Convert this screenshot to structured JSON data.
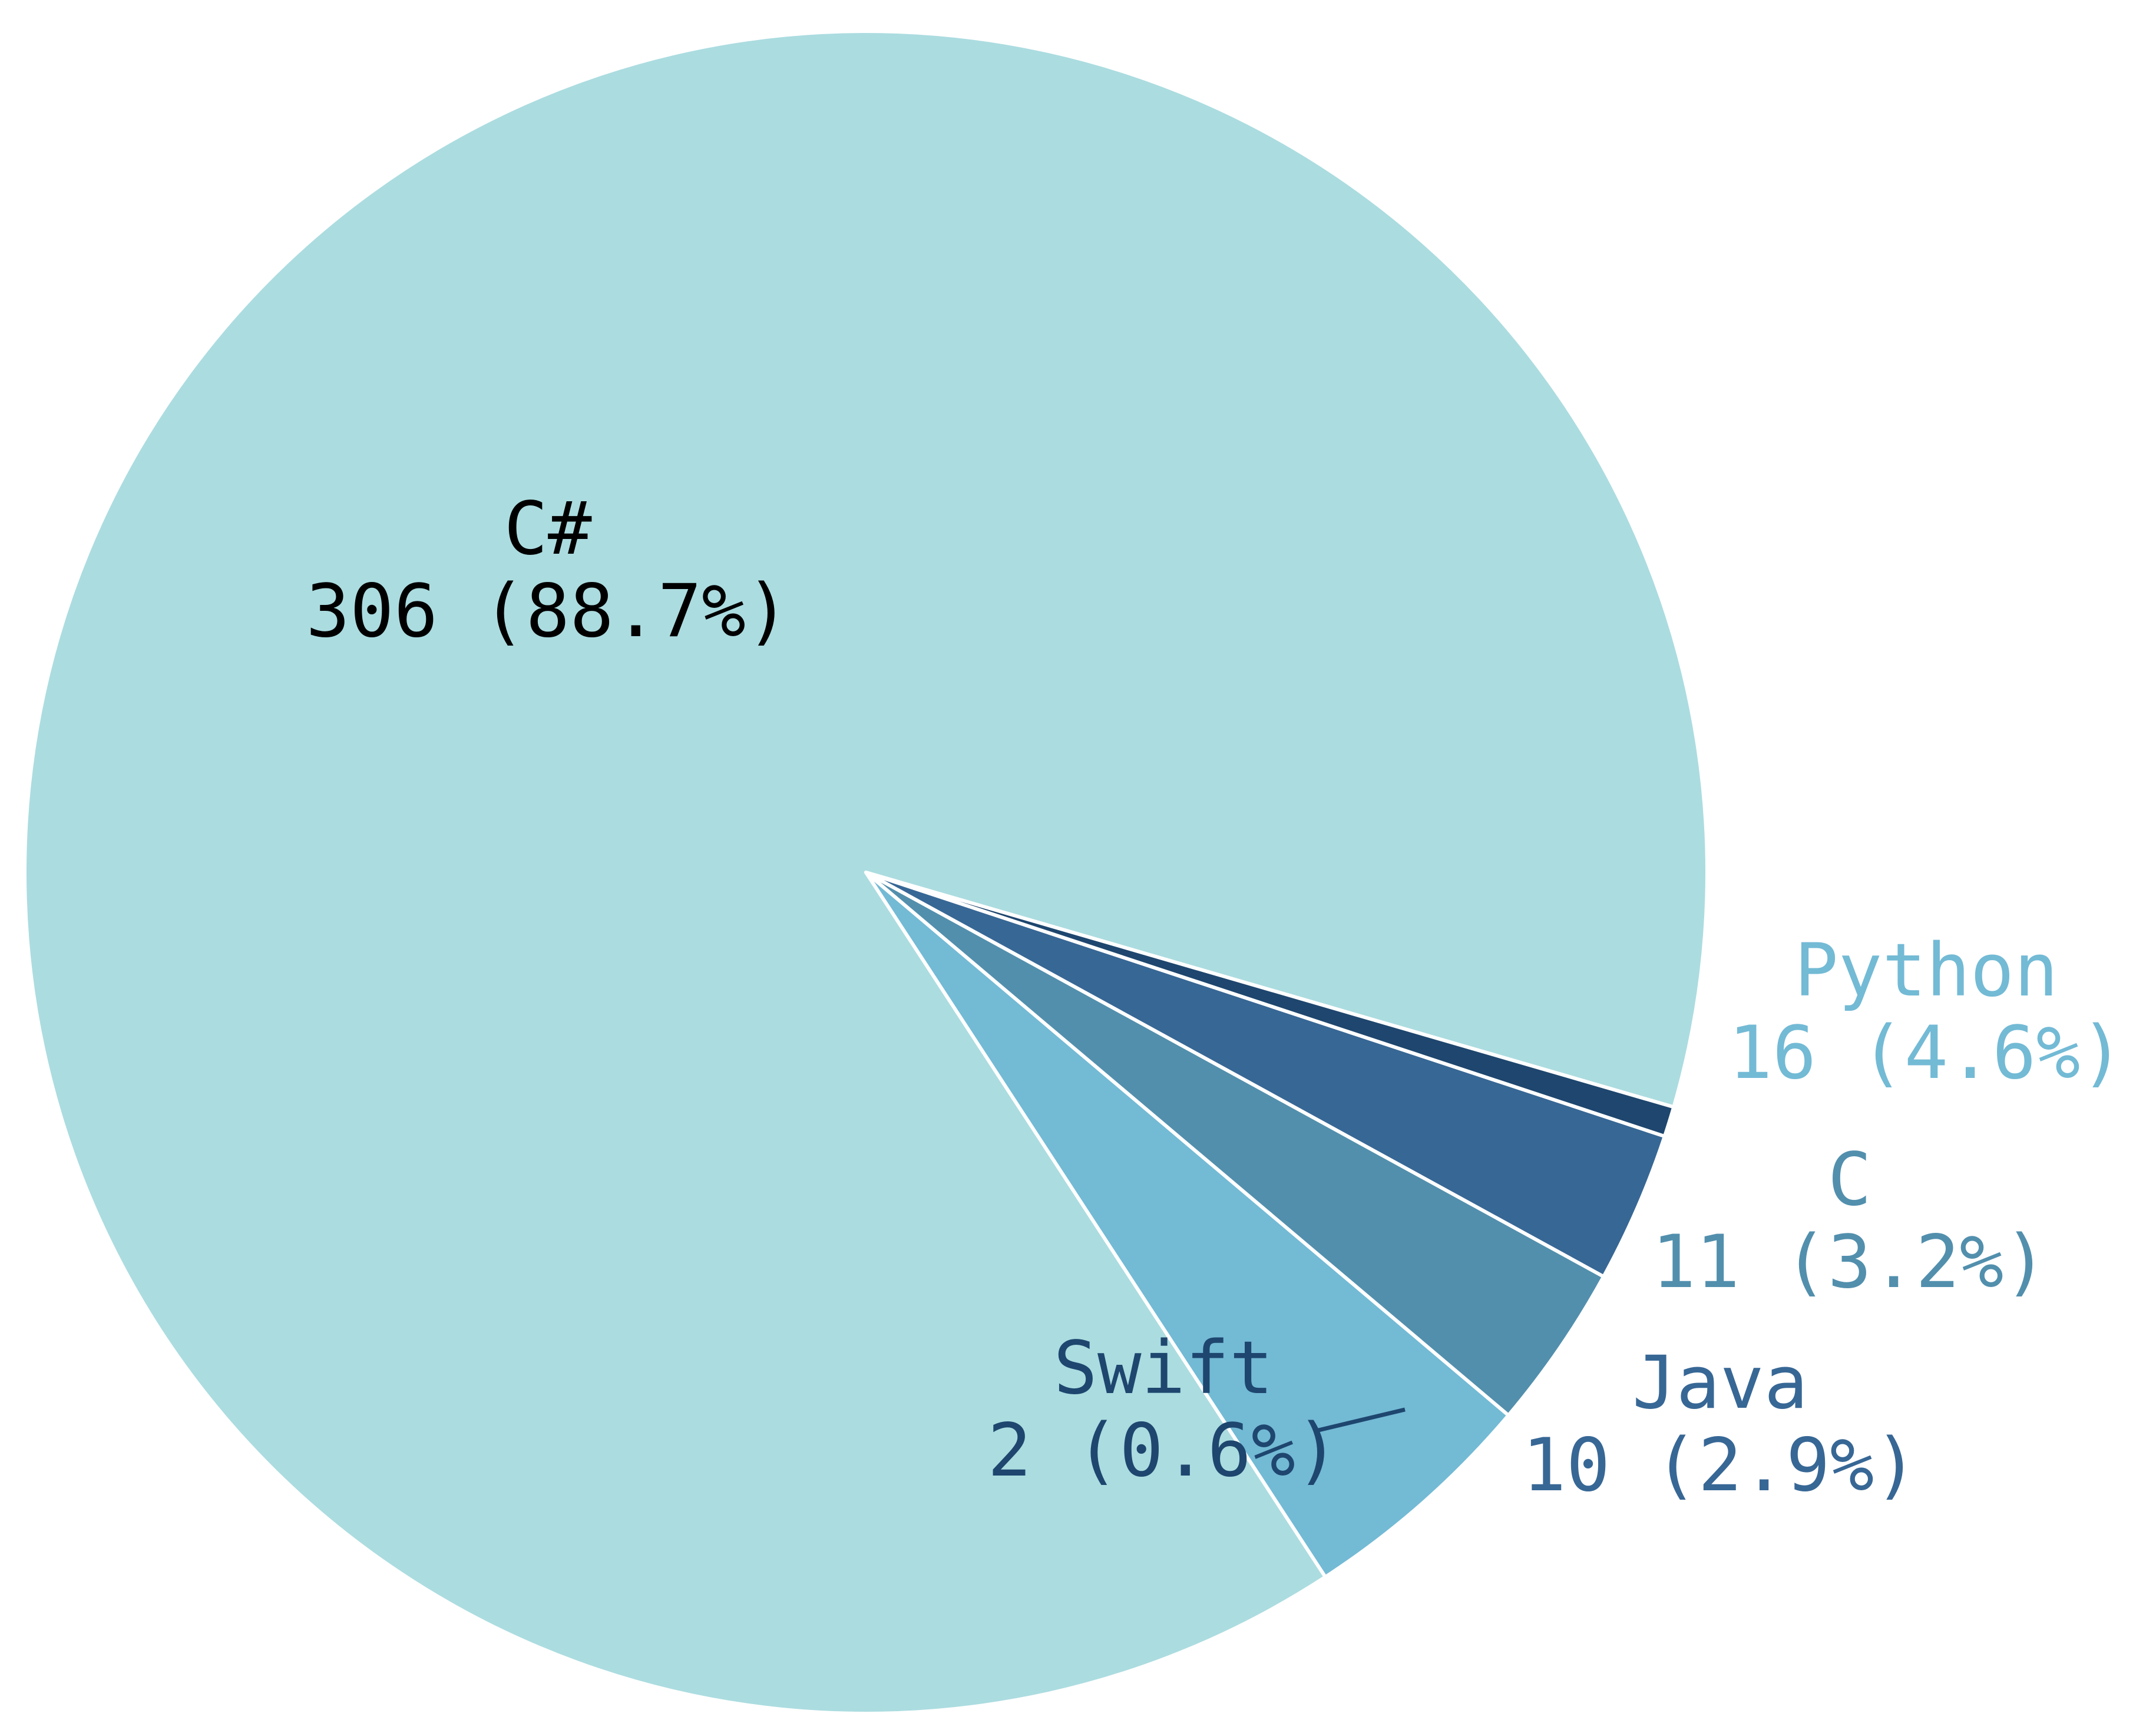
{
  "chart_data": {
    "type": "pie",
    "title": "",
    "legend": "none",
    "slices": [
      {
        "label": "C#",
        "value": 306,
        "percent": "88.7%",
        "value_text": "306 (88.7%)",
        "color": "#abdce0",
        "label_color": "#000000"
      },
      {
        "label": "Python",
        "value": 16,
        "percent": "4.6%",
        "value_text": "16 (4.6%)",
        "color": "#73bad5",
        "label_color": "#73bad5"
      },
      {
        "label": "C",
        "value": 11,
        "percent": "3.2%",
        "value_text": "11 (3.2%)",
        "color": "#528fad",
        "label_color": "#528fad"
      },
      {
        "label": "Java",
        "value": 10,
        "percent": "2.9%",
        "value_text": "10 (2.9%)",
        "color": "#376795",
        "label_color": "#376795"
      },
      {
        "label": "Swift",
        "value": 2,
        "percent": "0.6%",
        "value_text": "2 (0.6%)",
        "color": "#1e466e",
        "label_color": "#1e466e"
      }
    ]
  }
}
